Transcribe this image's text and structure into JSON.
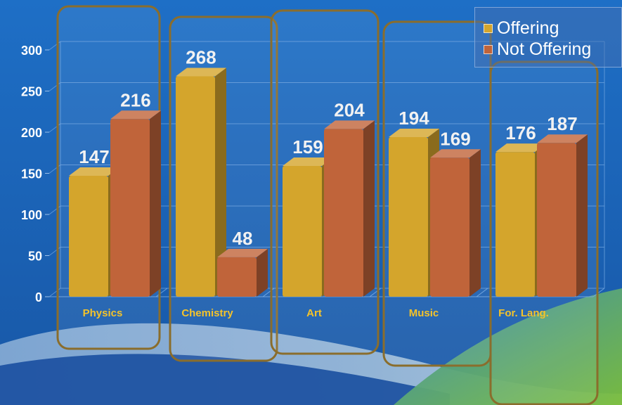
{
  "chart_data": {
    "type": "bar",
    "categories": [
      "Physics",
      "Chemistry",
      "Art",
      "Music",
      "For. Lang."
    ],
    "series": [
      {
        "name": "Offering",
        "values": [
          147,
          268,
          159,
          194,
          176
        ],
        "color": "#d4a52c"
      },
      {
        "name": "Not Offering",
        "values": [
          216,
          48,
          204,
          169,
          187
        ],
        "color": "#c0643a"
      }
    ],
    "ylim": [
      0,
      300
    ],
    "yticks": [
      0,
      50,
      100,
      150,
      200,
      250,
      300
    ],
    "grid": true,
    "legend": "top-right"
  },
  "colors": {
    "background": "#1a63b7",
    "offering": "#d4a52c",
    "not_offering": "#c0643a",
    "highlight_box": "#8a6d2c",
    "category_label": "#f5c32a",
    "data_label": "#f2f2f2"
  }
}
